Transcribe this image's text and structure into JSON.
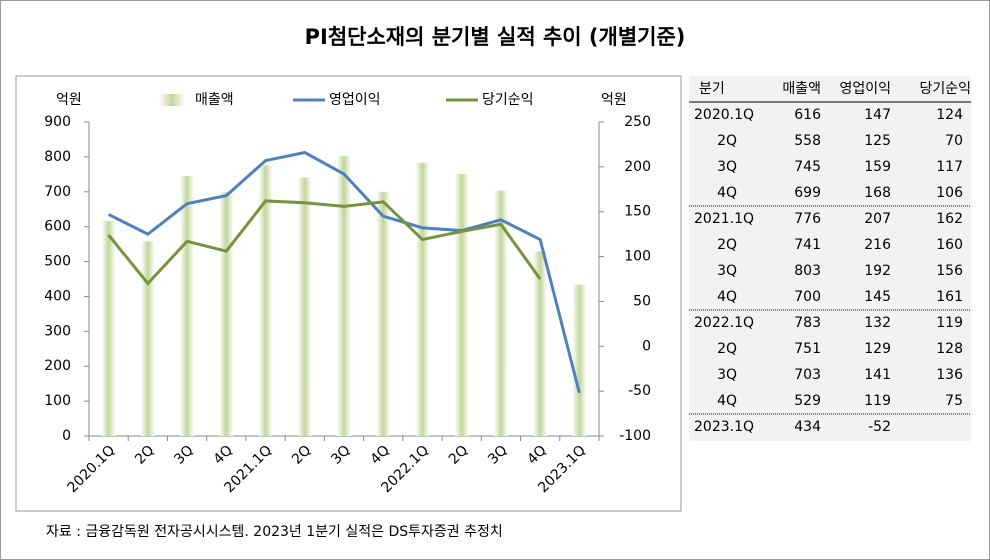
{
  "chart_data": {
    "type": "bar_line",
    "title": "PI첨단소재의 분기별 실적 추이 (개별기준)",
    "y_label": "억원",
    "y2_label": "억원",
    "categories": [
      "2020.1Q",
      "2Q",
      "3Q",
      "4Q",
      "2021.1Q",
      "2Q",
      "3Q",
      "4Q",
      "2022.1Q",
      "2Q",
      "3Q",
      "4Q",
      "2023.1Q"
    ],
    "series": [
      {
        "name": "매출액",
        "color": "#c3d69b",
        "kind": "bar",
        "values": [
          616,
          558,
          745,
          699,
          776,
          741,
          803,
          700,
          783,
          751,
          703,
          529,
          434
        ]
      },
      {
        "name": "영업이익",
        "color": "#4f81bd",
        "kind": "line",
        "axis": "y2",
        "values": [
          147,
          125,
          159,
          168,
          207,
          216,
          192,
          145,
          132,
          129,
          141,
          119,
          -52
        ]
      },
      {
        "name": "당기순익",
        "color": "#77933c",
        "kind": "line",
        "axis": "y2",
        "values": [
          124,
          70,
          117,
          106,
          162,
          160,
          156,
          161,
          119,
          128,
          136,
          75,
          null
        ]
      }
    ],
    "ylim": [
      0,
      900
    ],
    "yticks": [
      0,
      100,
      200,
      300,
      400,
      500,
      600,
      700,
      800,
      900
    ],
    "y2lim": [
      -100,
      250
    ],
    "y2ticks": [
      -100,
      -50,
      0,
      50,
      100,
      150,
      200,
      250
    ],
    "negative_color": "#ff0000",
    "grid": false
  },
  "table": {
    "header": [
      "분기",
      "매출액",
      "영업이익",
      "당기순익"
    ],
    "rows": [
      [
        "2020.1Q",
        616,
        147,
        124
      ],
      [
        "2Q",
        558,
        125,
        70
      ],
      [
        "3Q",
        745,
        159,
        117
      ],
      [
        "4Q",
        699,
        168,
        106
      ],
      [
        "2021.1Q",
        776,
        207,
        162
      ],
      [
        "2Q",
        741,
        216,
        160
      ],
      [
        "3Q",
        803,
        192,
        156
      ],
      [
        "4Q",
        700,
        145,
        161
      ],
      [
        "2022.1Q",
        783,
        132,
        119
      ],
      [
        "2Q",
        751,
        129,
        128
      ],
      [
        "3Q",
        703,
        141,
        136
      ],
      [
        "4Q",
        529,
        119,
        75
      ],
      [
        "2023.1Q",
        434,
        -52
      ]
    ],
    "negative_color": "#ff0000"
  },
  "footnote": "자료 : 금융감독원 전자공시시스템. 2023년 1분기 실적은 DS투자증권 추정치"
}
